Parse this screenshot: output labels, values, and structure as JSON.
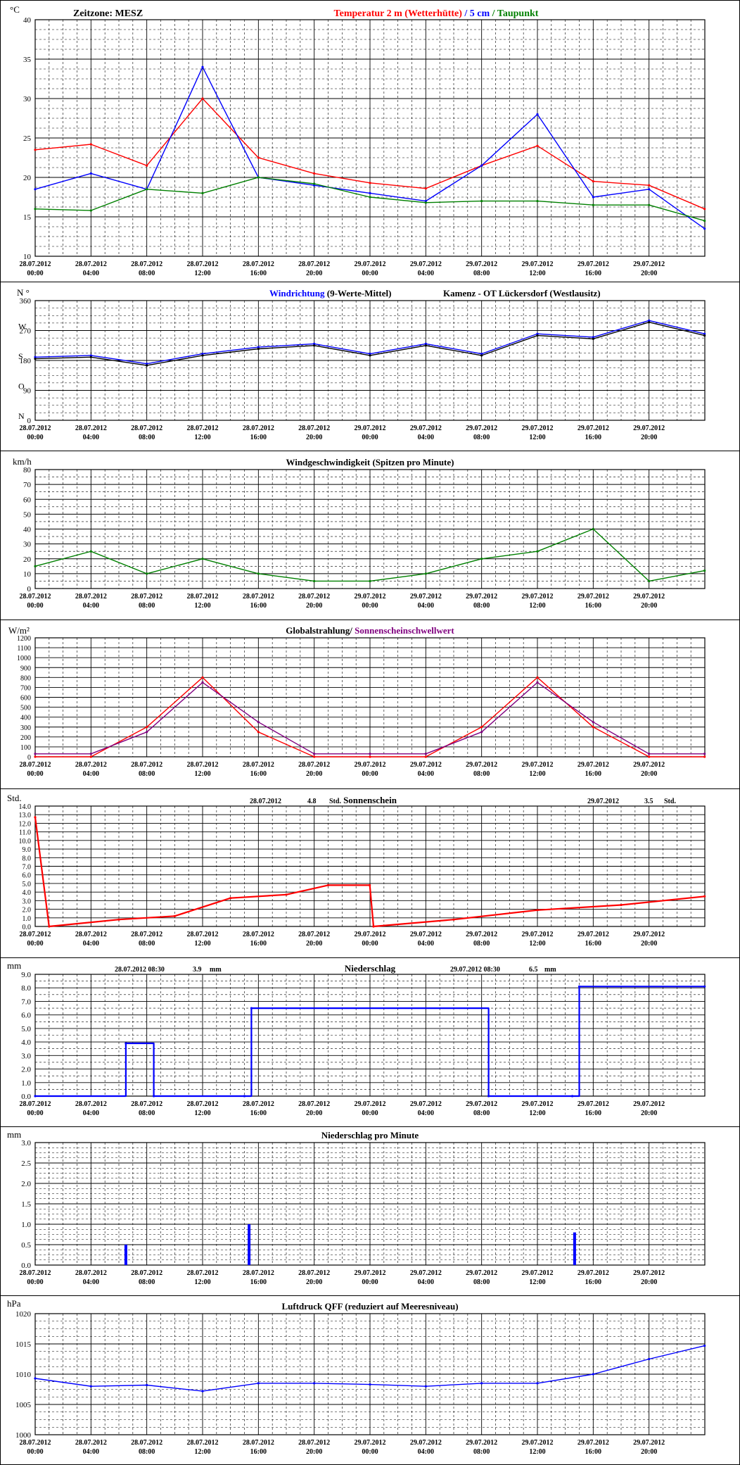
{
  "x_tick_labels": [
    [
      "28.07.2012",
      "00:00"
    ],
    [
      "28.07.2012",
      "04:00"
    ],
    [
      "28.07.2012",
      "08:00"
    ],
    [
      "28.07.2012",
      "12:00"
    ],
    [
      "28.07.2012",
      "16:00"
    ],
    [
      "28.07.2012",
      "20:00"
    ],
    [
      "29.07.2012",
      "00:00"
    ],
    [
      "29.07.2012",
      "04:00"
    ],
    [
      "29.07.2012",
      "08:00"
    ],
    [
      "29.07.2012",
      "12:00"
    ],
    [
      "29.07.2012",
      "16:00"
    ],
    [
      "29.07.2012",
      "20:00"
    ]
  ],
  "chart_data": [
    {
      "id": "temperature",
      "type": "line",
      "unit": "°C",
      "title_parts": [
        {
          "text": "Zeitzone: MESZ",
          "color": "#000000"
        },
        {
          "text": "Temperatur 2 m (Wetterhütte)",
          "color": "#ff0000"
        },
        {
          "text": "/ 5 cm",
          "color": "#0000ff"
        },
        {
          "text": "/ Taupunkt",
          "color": "#008000"
        }
      ],
      "ylim": [
        10,
        40
      ],
      "yticks": [
        10,
        15,
        20,
        25,
        30,
        35,
        40
      ],
      "x": [
        "28.07.2012 00:00",
        "28.07.2012 04:00",
        "28.07.2012 08:00",
        "28.07.2012 12:00",
        "28.07.2012 16:00",
        "28.07.2012 20:00",
        "29.07.2012 00:00",
        "29.07.2012 04:00",
        "29.07.2012 08:00",
        "29.07.2012 12:00",
        "29.07.2012 16:00",
        "29.07.2012 20:00",
        "29.07.2012 23:59"
      ],
      "series": [
        {
          "name": "Temperatur 2 m (Wetterhütte)",
          "color": "#ff0000",
          "values": [
            23.5,
            24.2,
            21.5,
            30.0,
            22.5,
            20.5,
            19.3,
            18.6,
            21.5,
            24.0,
            19.5,
            19.0,
            16.0
          ]
        },
        {
          "name": "5 cm",
          "color": "#0000ff",
          "values": [
            18.5,
            20.5,
            18.5,
            34.0,
            20.0,
            19.0,
            18.0,
            17.0,
            21.5,
            28.0,
            17.5,
            18.5,
            13.5
          ]
        },
        {
          "name": "Taupunkt",
          "color": "#008000",
          "values": [
            16.0,
            15.8,
            18.5,
            18.0,
            20.0,
            19.2,
            17.5,
            16.8,
            17.0,
            17.0,
            16.5,
            16.5,
            14.5
          ]
        }
      ]
    },
    {
      "id": "wind_direction",
      "type": "line",
      "unit": "N °",
      "title_parts": [
        {
          "text": "Windrichtung",
          "color": "#0000ff"
        },
        {
          "text": "(9-Werte-Mittel)",
          "color": "#000000"
        },
        {
          "text": "Kamenz - OT Lückersdorf (Westlausitz)",
          "color": "#000000"
        }
      ],
      "ylim": [
        0,
        360
      ],
      "yticks": [
        0,
        90,
        180,
        270,
        360
      ],
      "compass_labels": [
        {
          "value": 0,
          "label": "N"
        },
        {
          "value": 90,
          "label": "O"
        },
        {
          "value": 180,
          "label": "S"
        },
        {
          "value": 270,
          "label": "W"
        }
      ],
      "x": [
        "28.07.2012 00:00",
        "28.07.2012 04:00",
        "28.07.2012 08:00",
        "28.07.2012 12:00",
        "28.07.2012 16:00",
        "28.07.2012 20:00",
        "29.07.2012 00:00",
        "29.07.2012 04:00",
        "29.07.2012 08:00",
        "29.07.2012 12:00",
        "29.07.2012 16:00",
        "29.07.2012 20:00",
        "29.07.2012 23:59"
      ],
      "series": [
        {
          "name": "Windrichtung",
          "color": "#0000ff",
          "values": [
            190,
            195,
            170,
            200,
            220,
            230,
            200,
            230,
            200,
            260,
            250,
            300,
            260
          ]
        },
        {
          "name": "9-Werte-Mittel",
          "color": "#000000",
          "values": [
            185,
            190,
            165,
            195,
            215,
            225,
            195,
            225,
            195,
            255,
            245,
            295,
            255
          ]
        }
      ]
    },
    {
      "id": "wind_speed",
      "type": "line",
      "unit": "km/h",
      "title_parts": [
        {
          "text": "Windgeschwindigkeit (Spitzen pro Minute)",
          "color": "#000000"
        }
      ],
      "ylim": [
        0,
        80
      ],
      "yticks": [
        0,
        10,
        20,
        30,
        40,
        50,
        60,
        70,
        80
      ],
      "x": [
        "28.07.2012 00:00",
        "28.07.2012 04:00",
        "28.07.2012 08:00",
        "28.07.2012 12:00",
        "28.07.2012 16:00",
        "28.07.2012 20:00",
        "29.07.2012 00:00",
        "29.07.2012 04:00",
        "29.07.2012 08:00",
        "29.07.2012 12:00",
        "29.07.2012 16:00",
        "29.07.2012 20:00",
        "29.07.2012 23:59"
      ],
      "series": [
        {
          "name": "Windgeschwindigkeit",
          "color": "#008000",
          "values": [
            15,
            25,
            10,
            20,
            10,
            5,
            5,
            10,
            20,
            25,
            40,
            5,
            12
          ]
        }
      ]
    },
    {
      "id": "radiation",
      "type": "line",
      "unit": "W/m²",
      "title_parts": [
        {
          "text": "Globalstrahlung/",
          "color": "#000000"
        },
        {
          "text": "Sonnenscheinschwellwert",
          "color": "#800080"
        }
      ],
      "ylim": [
        0,
        1200
      ],
      "yticks": [
        0,
        100,
        200,
        300,
        400,
        500,
        600,
        700,
        800,
        900,
        1000,
        1100,
        1200
      ],
      "x": [
        "28.07.2012 00:00",
        "28.07.2012 04:00",
        "28.07.2012 08:00",
        "28.07.2012 12:00",
        "28.07.2012 16:00",
        "28.07.2012 20:00",
        "29.07.2012 00:00",
        "29.07.2012 04:00",
        "29.07.2012 08:00",
        "29.07.2012 12:00",
        "29.07.2012 16:00",
        "29.07.2012 20:00",
        "29.07.2012 23:59"
      ],
      "series": [
        {
          "name": "Globalstrahlung",
          "color": "#ff0000",
          "values": [
            0,
            0,
            300,
            800,
            250,
            0,
            0,
            0,
            300,
            800,
            300,
            0,
            0
          ]
        },
        {
          "name": "Sonnenscheinschwellwert",
          "color": "#800080",
          "values": [
            30,
            30,
            250,
            750,
            350,
            30,
            30,
            30,
            250,
            750,
            350,
            30,
            30
          ]
        }
      ]
    },
    {
      "id": "sunshine",
      "type": "line",
      "unit": "Std.",
      "title_parts": [
        {
          "text": "Sonnenschein",
          "color": "#000000"
        }
      ],
      "header_values": [
        {
          "date": "28.07.2012",
          "value": "4.8",
          "unit": "Std."
        },
        {
          "date": "29.07.2012",
          "value": "3.5",
          "unit": "Std."
        }
      ],
      "ylim": [
        0,
        14
      ],
      "yticks": [
        "0.0",
        "1.0",
        "2.0",
        "3.0",
        "4.0",
        "5.0",
        "6.0",
        "7.0",
        "8.0",
        "9.0",
        "10.0",
        "11.0",
        "12.0",
        "13.0",
        "14.0"
      ],
      "x": [
        "28.07.2012 00:00",
        "28.07.2012 01:00",
        "28.07.2012 06:00",
        "28.07.2012 10:00",
        "28.07.2012 14:00",
        "28.07.2012 18:00",
        "28.07.2012 21:00",
        "28.07.2012 23:59",
        "29.07.2012 00:15",
        "29.07.2012 06:00",
        "29.07.2012 12:00",
        "29.07.2012 18:00",
        "29.07.2012 23:59"
      ],
      "series": [
        {
          "name": "Sonnenschein",
          "color": "#ff0000",
          "values": [
            12.7,
            0.0,
            0.8,
            1.2,
            3.3,
            3.7,
            4.8,
            4.8,
            0.0,
            0.8,
            1.9,
            2.5,
            3.5
          ]
        }
      ]
    },
    {
      "id": "precip",
      "type": "line",
      "unit": "mm",
      "title_parts": [
        {
          "text": "Niederschlag",
          "color": "#000000"
        }
      ],
      "header_values": [
        {
          "date": "28.07.2012 08:30",
          "value": "3.9",
          "unit": "mm"
        },
        {
          "date": "29.07.2012 08:30",
          "value": "6.5",
          "unit": "mm"
        }
      ],
      "ylim": [
        0,
        9
      ],
      "yticks": [
        "0.0",
        "1.0",
        "2.0",
        "3.0",
        "4.0",
        "5.0",
        "6.0",
        "7.0",
        "8.0",
        "9.0"
      ],
      "x": [
        "28.07.2012 00:00",
        "28.07.2012 06:30",
        "28.07.2012 08:30",
        "28.07.2012 15:00",
        "28.07.2012 15:30",
        "29.07.2012 08:30",
        "29.07.2012 14:30",
        "29.07.2012 15:00",
        "29.07.2012 23:59"
      ],
      "series": [
        {
          "name": "Niederschlag",
          "color": "#0000ff",
          "values": [
            0.0,
            3.9,
            0.0,
            0.0,
            6.5,
            0.0,
            0.0,
            8.1,
            8.1
          ]
        }
      ]
    },
    {
      "id": "precip_min",
      "type": "bar",
      "unit": "mm",
      "title_parts": [
        {
          "text": "Niederschlag pro Minute",
          "color": "#000000"
        }
      ],
      "ylim": [
        0,
        3
      ],
      "yticks": [
        "0.0",
        "0.5",
        "1.0",
        "1.5",
        "2.0",
        "2.5",
        "3.0"
      ],
      "x": [
        "28.07.2012 06:30",
        "28.07.2012 15:20",
        "29.07.2012 14:40"
      ],
      "series": [
        {
          "name": "Niederschlag pro Minute",
          "color": "#0000ff",
          "values": [
            0.5,
            1.0,
            0.8
          ]
        }
      ]
    },
    {
      "id": "pressure",
      "type": "line",
      "unit": "hPa",
      "title_parts": [
        {
          "text": "Luftdruck QFF (reduziert auf Meeresniveau)",
          "color": "#000000"
        }
      ],
      "ylim": [
        1000,
        1020
      ],
      "yticks": [
        1000,
        1005,
        1010,
        1015,
        1020
      ],
      "x": [
        "28.07.2012 00:00",
        "28.07.2012 04:00",
        "28.07.2012 08:00",
        "28.07.2012 12:00",
        "28.07.2012 16:00",
        "28.07.2012 20:00",
        "29.07.2012 00:00",
        "29.07.2012 04:00",
        "29.07.2012 08:00",
        "29.07.2012 12:00",
        "29.07.2012 16:00",
        "29.07.2012 20:00",
        "29.07.2012 23:59"
      ],
      "series": [
        {
          "name": "Luftdruck QFF",
          "color": "#0000ff",
          "values": [
            1009.3,
            1008.0,
            1008.2,
            1007.2,
            1008.5,
            1008.5,
            1008.3,
            1008.0,
            1008.5,
            1008.5,
            1010.0,
            1012.5,
            1014.7
          ]
        }
      ]
    }
  ]
}
